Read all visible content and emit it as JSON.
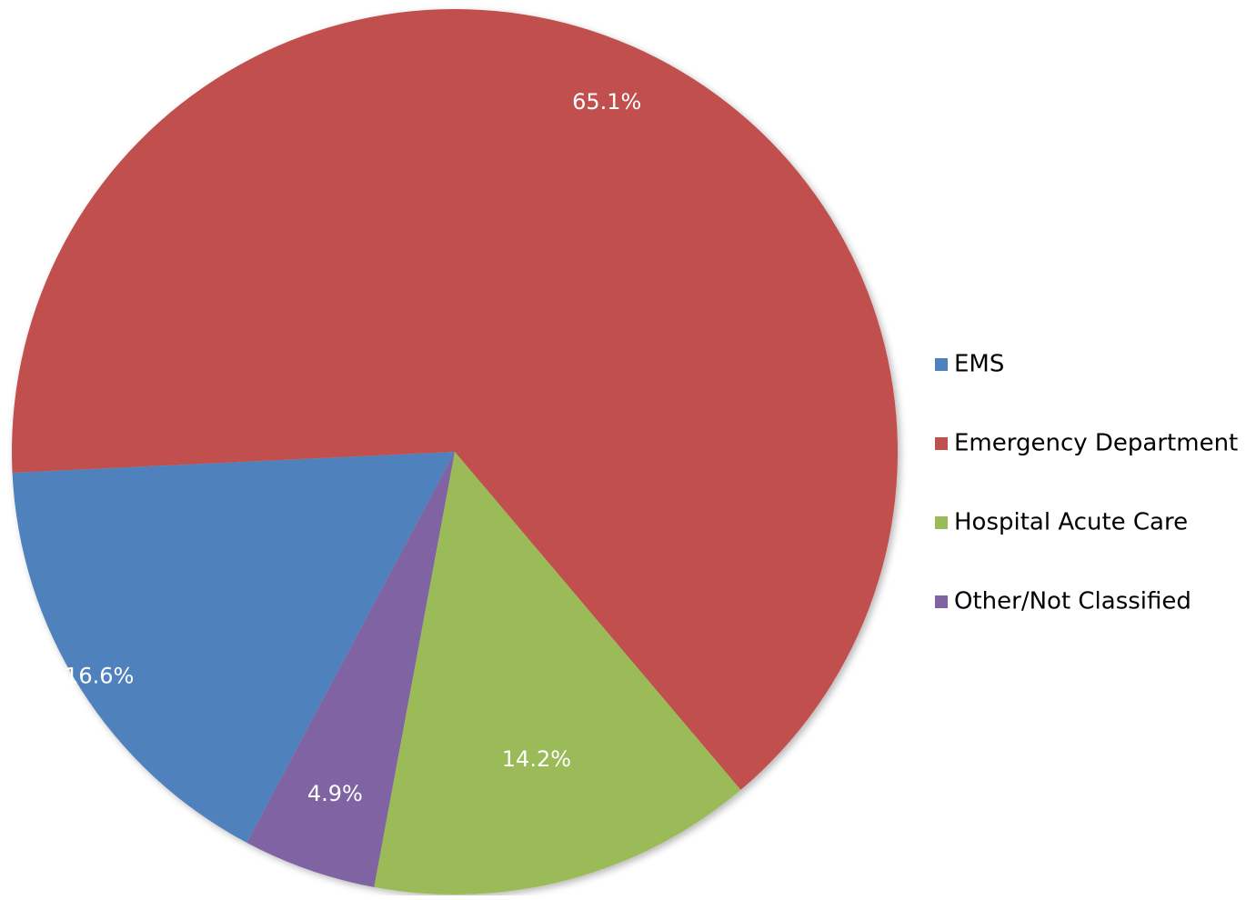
{
  "chart_data": {
    "type": "pie",
    "categories": [
      "EMS",
      "Emergency Department",
      "Hospital Acute Care",
      "Other/Not Classified"
    ],
    "values": [
      16.6,
      65.1,
      14.2,
      4.9
    ],
    "labels": [
      "16.6%",
      "65.1%",
      "14.2%",
      "4.9%"
    ],
    "colors": [
      "#4f81bd",
      "#c0504d",
      "#9bbb59",
      "#8064a2"
    ],
    "legend": {
      "placement": "right",
      "entries": [
        "EMS",
        "Emergency Department",
        "Hospital Acute Care",
        "Other/Not Classified"
      ]
    }
  }
}
